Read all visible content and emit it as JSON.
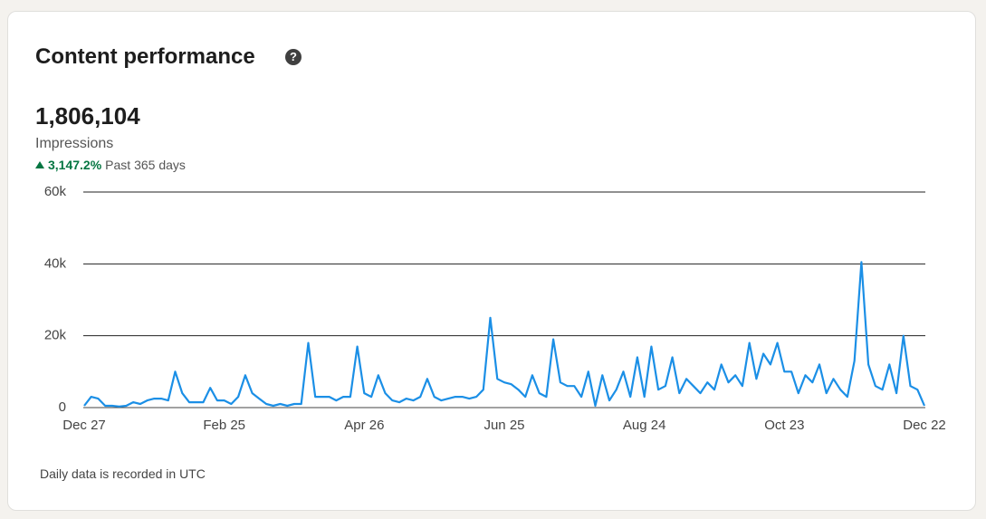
{
  "header": {
    "title": "Content performance"
  },
  "summary": {
    "total": "1,806,104",
    "metric": "Impressions",
    "change": "3,147.2%",
    "period": "Past 365 days"
  },
  "footer": "Daily data is recorded in UTC",
  "chart_data": {
    "type": "line",
    "color": "#1b8fe6",
    "categories": [
      "Dec 27",
      null,
      null,
      null,
      null,
      null,
      null,
      null,
      null,
      null,
      null,
      null,
      null,
      null,
      null,
      null,
      null,
      null,
      null,
      null,
      "Feb 25",
      null,
      null,
      null,
      null,
      null,
      null,
      null,
      null,
      null,
      null,
      null,
      null,
      null,
      null,
      null,
      null,
      null,
      null,
      null,
      "Apr 26",
      null,
      null,
      null,
      null,
      null,
      null,
      null,
      null,
      null,
      null,
      null,
      null,
      null,
      null,
      null,
      null,
      null,
      null,
      null,
      "Jun 25",
      null,
      null,
      null,
      null,
      null,
      null,
      null,
      null,
      null,
      null,
      null,
      null,
      null,
      null,
      null,
      null,
      null,
      null,
      null,
      "Aug 24",
      null,
      null,
      null,
      null,
      null,
      null,
      null,
      null,
      null,
      null,
      null,
      null,
      null,
      null,
      null,
      null,
      null,
      null,
      null,
      "Oct 23",
      null,
      null,
      null,
      null,
      null,
      null,
      null,
      null,
      null,
      null,
      null,
      null,
      null,
      null,
      null,
      null,
      null,
      null,
      null,
      "Dec 22"
    ],
    "values": [
      500,
      3000,
      2500,
      500,
      500,
      300,
      500,
      1500,
      1000,
      2000,
      2500,
      2500,
      2000,
      10000,
      4000,
      1500,
      1500,
      1500,
      5500,
      2000,
      2000,
      1000,
      3000,
      9000,
      4000,
      2500,
      1000,
      500,
      1000,
      500,
      1000,
      1000,
      18000,
      3000,
      3000,
      3000,
      2000,
      3000,
      3000,
      17000,
      4000,
      3000,
      9000,
      4000,
      2000,
      1500,
      2500,
      2000,
      3000,
      8000,
      3000,
      2000,
      2500,
      3000,
      3000,
      2500,
      3000,
      5000,
      25000,
      8000,
      7000,
      6500,
      5000,
      3000,
      9000,
      4000,
      3000,
      19000,
      7000,
      6000,
      6000,
      3000,
      10000,
      500,
      9000,
      2000,
      5000,
      10000,
      3000,
      14000,
      3000,
      17000,
      5000,
      6000,
      14000,
      4000,
      8000,
      6000,
      4000,
      7000,
      5000,
      12000,
      7000,
      9000,
      6000,
      18000,
      8000,
      15000,
      12000,
      18000,
      10000,
      10000,
      4000,
      9000,
      7000,
      12000,
      4000,
      8000,
      5000,
      3000,
      13000,
      40500,
      12000,
      6000,
      5000,
      12000,
      4000,
      20000,
      6000,
      5000,
      500
    ],
    "ylim": [
      0,
      60000
    ],
    "yticks": [
      {
        "value": 0,
        "label": "0"
      },
      {
        "value": 20000,
        "label": "20k"
      },
      {
        "value": 40000,
        "label": "40k"
      },
      {
        "value": 60000,
        "label": "60k"
      }
    ],
    "grid": true
  }
}
